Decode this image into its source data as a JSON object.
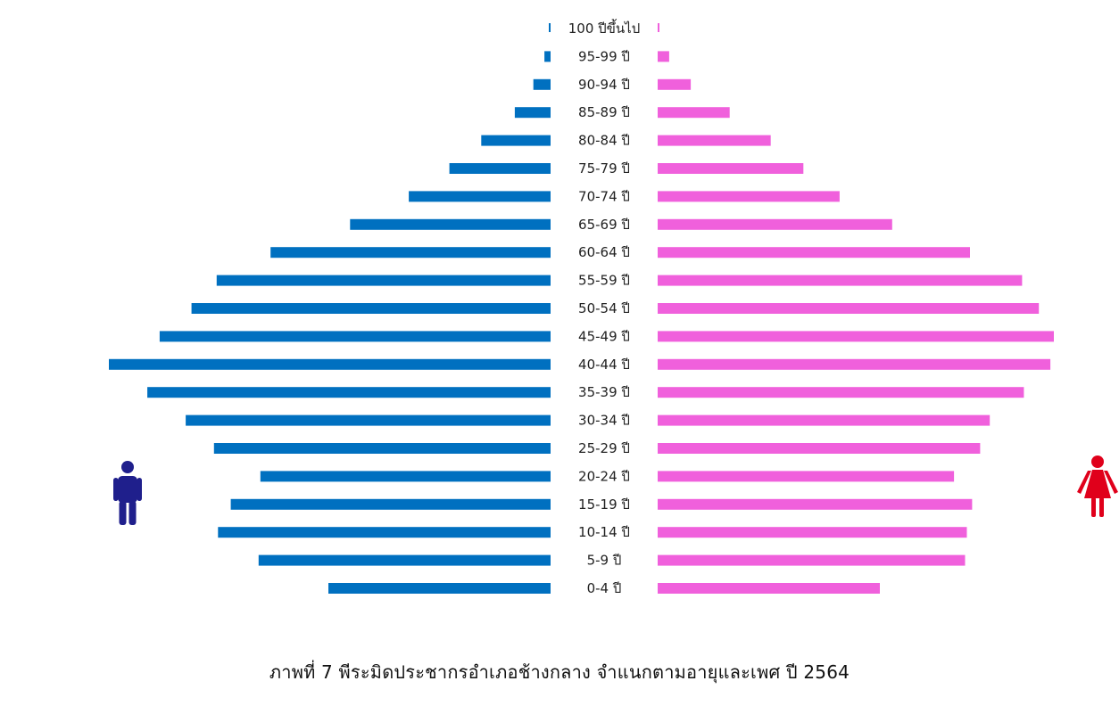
{
  "chart_data": {
    "type": "bar",
    "orientation": "horizontal-population-pyramid",
    "caption": "ภาพที่ 7 พีระมิดประชากรอำเภอช้างกลาง จำแนกตามอายุและเพศ ปี 2564",
    "categories": [
      "100 ปีขึ้นไป",
      "95-99 ปี",
      "90-94 ปี",
      "85-89 ปี",
      "80-84 ปี",
      "75-79 ปี",
      "70-74 ปี",
      "65-69 ปี",
      "60-64 ปี",
      "55-59 ปี",
      "50-54 ปี",
      "45-49 ปี",
      "40-44 ปี",
      "35-39 ปี",
      "30-34 ปี",
      "25-29 ปี",
      "20-24 ปี",
      "15-19 ปี",
      "10-14 ปี",
      "5-9 ปี",
      "0-4 ปี"
    ],
    "series": [
      {
        "values": [
          0.4,
          1.4,
          3.9,
          8.1,
          15.7,
          22.9,
          32.1,
          45.4,
          63.4,
          75.6,
          81.3,
          88.5,
          100.0,
          91.3,
          82.6,
          76.2,
          65.7,
          72.4,
          75.3,
          66.1,
          50.3
        ]
      },
      {
        "values": [
          0.4,
          2.6,
          7.5,
          16.3,
          25.6,
          33.0,
          41.2,
          53.1,
          70.7,
          82.5,
          86.3,
          89.7,
          88.9,
          82.9,
          75.2,
          73.0,
          67.1,
          71.2,
          70.0,
          69.6,
          50.3
        ]
      }
    ],
    "colors": {
      "male": "#0070c0",
      "female": "#f060dc",
      "male_icon": "#1f1f8c",
      "female_icon": "#e0001b"
    },
    "icons": {
      "male": "man-figure-icon",
      "female": "woman-figure-icon"
    },
    "xlim": [
      0,
      100
    ],
    "axes_visible": false,
    "gridlines": false,
    "legend": "none"
  }
}
